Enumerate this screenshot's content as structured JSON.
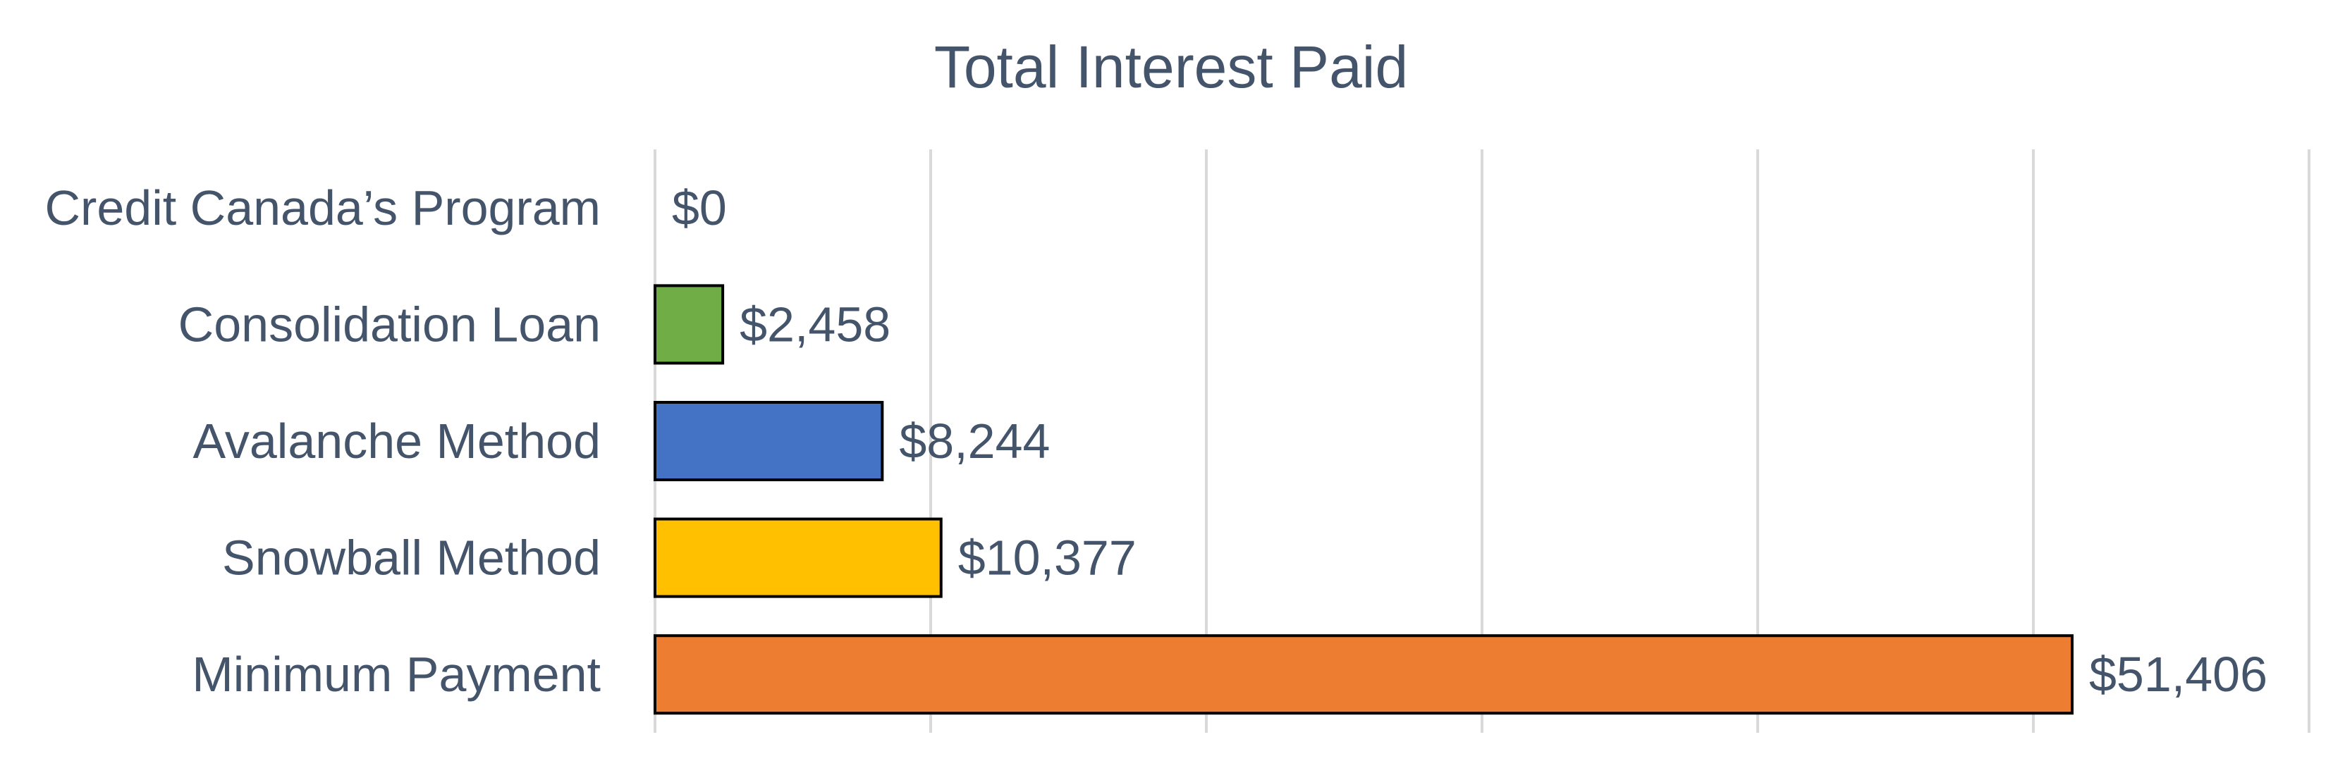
{
  "chart_data": {
    "type": "bar",
    "orientation": "horizontal",
    "title": "Total Interest Paid",
    "xlabel": "",
    "ylabel": "",
    "categories": [
      "Credit Canada’s Program",
      "Consolidation Loan",
      "Avalanche Method",
      "Snowball Method",
      "Minimum Payment"
    ],
    "values": [
      0,
      2458,
      8244,
      10377,
      51406
    ],
    "data_labels": [
      "$0",
      "$2,458",
      "$8,244",
      "$10,377",
      "$51,406"
    ],
    "colors": [
      "#5b9bd5",
      "#70ad47",
      "#4472c4",
      "#ffc000",
      "#ed7d31"
    ],
    "xlim": [
      0,
      60000
    ],
    "x_grid_step": 10000,
    "grid": true,
    "legend": "none"
  }
}
